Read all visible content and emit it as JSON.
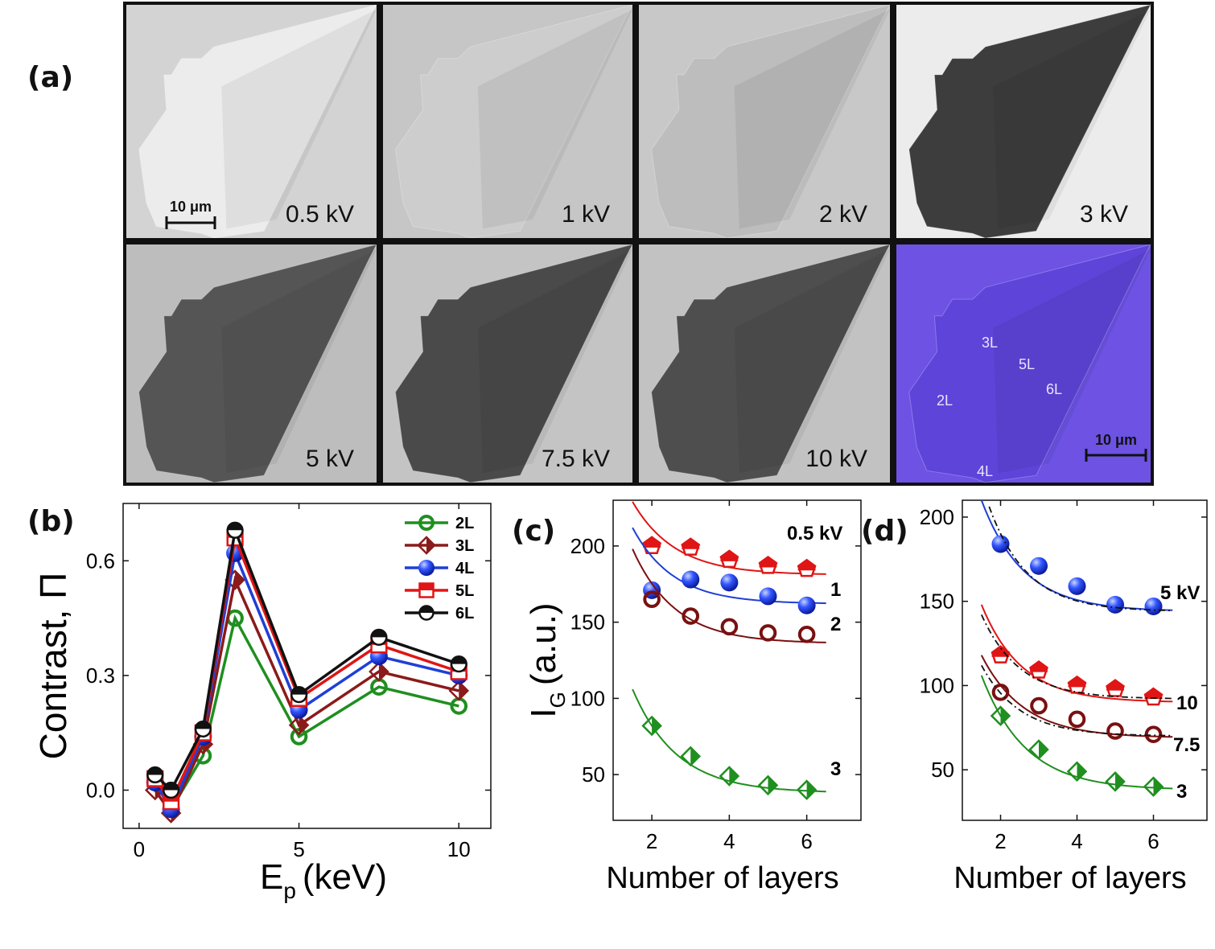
{
  "panel_labels": {
    "a": "(a)",
    "b": "(b)",
    "c": "(c)",
    "d": "(d)"
  },
  "images": [
    {
      "label": "0.5 kV",
      "tone": "#dcdcdc",
      "flake": "#ececec",
      "bg": "#d3d3d3"
    },
    {
      "label": "1 kV",
      "tone": "#c9c9c9",
      "flake": "#cdcdcd",
      "bg": "#c6c6c6"
    },
    {
      "label": "2 kV",
      "tone": "#c2c2c2",
      "flake": "#bdbdbd",
      "bg": "#c8c8c8"
    },
    {
      "label": "3 kV",
      "tone": "#ebebeb",
      "flake": "#3d3d3d",
      "bg": "#ececec"
    },
    {
      "label": "5 kV",
      "tone": "#bdbdbd",
      "flake": "#555555",
      "bg": "#bdbdbd"
    },
    {
      "label": "7.5 kV",
      "tone": "#c4c4c4",
      "flake": "#4a4a4a",
      "bg": "#c4c4c4"
    },
    {
      "label": "10 kV",
      "tone": "#c0c0c0",
      "flake": "#4e4e4e",
      "bg": "#c2c2c2"
    },
    {
      "label": "",
      "tone": "#6a4fe0",
      "flake": "#5e44d9",
      "bg": "#6d52e4"
    }
  ],
  "scalebar_sem": "10 μm",
  "scalebar_optical": "10 μm",
  "optical_layer_labels": [
    "3L",
    "5L",
    "6L",
    "2L",
    "4L"
  ],
  "chart_data": [
    {
      "id": "b",
      "type": "line",
      "xlabel": "E",
      "xlabel_sub": "p",
      "xlabel_unit": "(keV)",
      "ylabel": "Contrast, Π",
      "xlim": [
        -0.5,
        11
      ],
      "ylim": [
        -0.1,
        0.75
      ],
      "xticks": [
        0,
        5,
        10
      ],
      "yticks": [
        0.0,
        0.3,
        0.6
      ],
      "ytick_labels": [
        "0.0",
        "0.3",
        "0.6"
      ],
      "x": [
        0.5,
        1,
        2,
        3,
        5,
        7.5,
        10
      ],
      "series": [
        {
          "name": "2L",
          "color": "#1f8f1f",
          "marker": "circle-open",
          "values": [
            0.02,
            -0.05,
            0.09,
            0.45,
            0.14,
            0.27,
            0.22
          ]
        },
        {
          "name": "3L",
          "color": "#8b1a1a",
          "marker": "diamond-half",
          "values": [
            0.0,
            -0.06,
            0.12,
            0.55,
            0.17,
            0.31,
            0.26
          ]
        },
        {
          "name": "4L",
          "color": "#1f3fd6",
          "marker": "sphere",
          "values": [
            0.02,
            -0.05,
            0.14,
            0.62,
            0.21,
            0.35,
            0.3
          ]
        },
        {
          "name": "5L",
          "color": "#e01515",
          "marker": "square-half",
          "values": [
            0.03,
            -0.03,
            0.15,
            0.66,
            0.24,
            0.38,
            0.31
          ]
        },
        {
          "name": "6L",
          "color": "#111111",
          "marker": "circle-half",
          "values": [
            0.04,
            0.0,
            0.16,
            0.68,
            0.25,
            0.4,
            0.33
          ]
        }
      ]
    },
    {
      "id": "c",
      "type": "scatter",
      "xlabel": "Number of layers",
      "ylabel": "I",
      "ylabel_sub": "G",
      "ylabel_unit": "(a.u.)",
      "xlim": [
        1,
        7.4
      ],
      "ylim": [
        20,
        230
      ],
      "xticks": [
        2,
        4,
        6
      ],
      "yticks": [
        50,
        100,
        150,
        200
      ],
      "x": [
        2,
        3,
        4,
        5,
        6
      ],
      "series": [
        {
          "name": "0.5 kV",
          "color": "#e01515",
          "marker": "pentagon-half",
          "values": [
            200,
            199,
            191,
            187,
            185
          ],
          "fit": [
            229,
            181,
            1.1
          ]
        },
        {
          "name": "1",
          "color": "#1f3fd6",
          "marker": "sphere",
          "values": [
            171,
            178,
            176,
            167,
            161
          ],
          "fit": [
            212,
            162,
            1.05
          ]
        },
        {
          "name": "2",
          "color": "#7a1010",
          "marker": "circle-open",
          "values": [
            165,
            154,
            147,
            143,
            142
          ],
          "fit": [
            198,
            136,
            1.1
          ]
        },
        {
          "name": "3",
          "color": "#1f8f1f",
          "marker": "diamond-half",
          "values": [
            82,
            62,
            49,
            43,
            40
          ],
          "fit": [
            106,
            38,
            1.15
          ]
        }
      ]
    },
    {
      "id": "d",
      "type": "scatter",
      "xlabel": "Number of layers",
      "ylabel": "",
      "xlim": [
        1,
        7.4
      ],
      "ylim": [
        20,
        210
      ],
      "xticks": [
        2,
        4,
        6
      ],
      "yticks": [
        50,
        100,
        150,
        200
      ],
      "x": [
        2,
        3,
        4,
        5,
        6
      ],
      "series": [
        {
          "name": "5 kV",
          "color": "#1f3fd6",
          "marker": "sphere",
          "values": [
            184,
            171,
            159,
            148,
            147
          ],
          "fit": [
            210,
            144,
            1.1
          ]
        },
        {
          "name": "10",
          "color": "#e01515",
          "marker": "pentagon-half",
          "values": [
            118,
            109,
            100,
            98,
            93
          ],
          "fit": [
            148,
            90,
            1.05
          ]
        },
        {
          "name": "7.5",
          "color": "#7a1010",
          "marker": "circle-open",
          "values": [
            96,
            88,
            80,
            73,
            71
          ],
          "fit": [
            118,
            69,
            1.1
          ]
        },
        {
          "name": "3",
          "color": "#1f8f1f",
          "marker": "diamond-half",
          "values": [
            82,
            62,
            49,
            43,
            40
          ],
          "fit": [
            106,
            38,
            1.15
          ]
        }
      ]
    }
  ]
}
